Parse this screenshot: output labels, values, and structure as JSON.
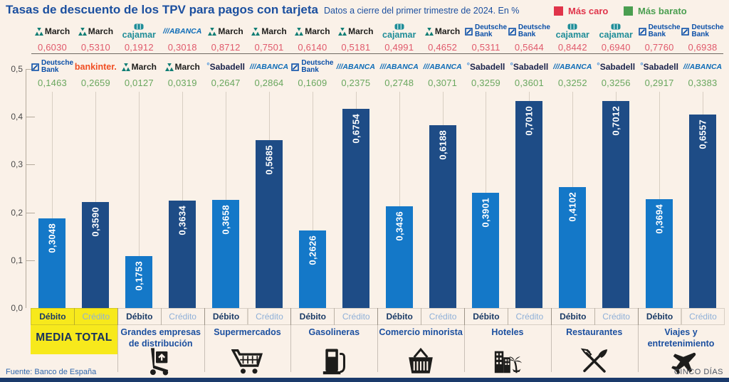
{
  "title": "Tasas de descuento de los TPV para pagos con tarjeta",
  "subtitle": "Datos a cierre del primer trimestre de 2024. En %",
  "legend": {
    "caro_label": "Más caro",
    "barato_label": "Más barato"
  },
  "colors": {
    "background": "#faf1e8",
    "title": "#1b4f9f",
    "debit_bar": "#1478c8",
    "credit_bar": "#1e4c86",
    "caro_value": "#e0596b",
    "barato_value": "#69a75e",
    "caro_legend": "#e0344a",
    "barato_legend": "#4a9e50",
    "highlight": "#f7e91c",
    "debit_label": "#1a3a66",
    "credit_label": "#8fb0d8",
    "bottom_strip": "#1a3a6b"
  },
  "banks": {
    "march": {
      "name": "March"
    },
    "cajamar": {
      "name": "cajamar"
    },
    "abanca": {
      "name": "ABANCA"
    },
    "deutsche": {
      "name": "Deutsche Bank"
    },
    "bankinter": {
      "name": "bankinter."
    },
    "sabadell": {
      "name": "Sabadell"
    }
  },
  "footer": {
    "source": "Fuente: Banco de España",
    "brand": "CINCO DÍAS"
  },
  "chart_data": {
    "type": "bar",
    "unit": "%",
    "ylim": [
      0,
      0.5
    ],
    "axis_ticks": [
      "0,5",
      "0,4",
      "0,3",
      "0,2",
      "0,1",
      "0,0"
    ],
    "grid": "vertical-guides-only",
    "legend_position": "top-right",
    "groups": [
      {
        "name": "MEDIA TOTAL",
        "highlight": true,
        "icon": null,
        "bars": [
          {
            "label": "Débito",
            "value": 0.3048,
            "display": "0,3048",
            "mas_caro": {
              "bank": "march",
              "value": "0,6030"
            },
            "mas_barato": {
              "bank": "deutsche",
              "value": "0,1463"
            }
          },
          {
            "label": "Crédito",
            "value": 0.359,
            "display": "0,3590",
            "mas_caro": {
              "bank": "march",
              "value": "0,5310"
            },
            "mas_barato": {
              "bank": "bankinter",
              "value": "0,2659"
            }
          }
        ]
      },
      {
        "name": "Grandes empresas de distribución",
        "highlight": false,
        "icon": "hand-truck",
        "bars": [
          {
            "label": "Débito",
            "value": 0.1753,
            "display": "0,1753",
            "mas_caro": {
              "bank": "cajamar",
              "value": "0,1912"
            },
            "mas_barato": {
              "bank": "march",
              "value": "0,0127"
            }
          },
          {
            "label": "Crédito",
            "value": 0.3634,
            "display": "0,3634",
            "mas_caro": {
              "bank": "abanca",
              "value": "0,3018"
            },
            "mas_barato": {
              "bank": "march",
              "value": "0,0319"
            }
          }
        ]
      },
      {
        "name": "Supermercados",
        "highlight": false,
        "icon": "cart",
        "bars": [
          {
            "label": "Débito",
            "value": 0.3658,
            "display": "0,3658",
            "mas_caro": {
              "bank": "march",
              "value": "0,8712"
            },
            "mas_barato": {
              "bank": "sabadell",
              "value": "0,2647"
            }
          },
          {
            "label": "Crédito",
            "value": 0.5685,
            "display": "0,5685",
            "mas_caro": {
              "bank": "march",
              "value": "0,7501"
            },
            "mas_barato": {
              "bank": "abanca",
              "value": "0,2864"
            }
          }
        ]
      },
      {
        "name": "Gasolineras",
        "highlight": false,
        "icon": "fuel-pump",
        "bars": [
          {
            "label": "Débito",
            "value": 0.2626,
            "display": "0,2626",
            "mas_caro": {
              "bank": "march",
              "value": "0,6140"
            },
            "mas_barato": {
              "bank": "deutsche",
              "value": "0,1609"
            }
          },
          {
            "label": "Crédito",
            "value": 0.6754,
            "display": "0,6754",
            "mas_caro": {
              "bank": "march",
              "value": "0,5181"
            },
            "mas_barato": {
              "bank": "abanca",
              "value": "0,2375"
            }
          }
        ]
      },
      {
        "name": "Comercio minorista",
        "highlight": false,
        "icon": "basket",
        "bars": [
          {
            "label": "Débito",
            "value": 0.3436,
            "display": "0,3436",
            "mas_caro": {
              "bank": "cajamar",
              "value": "0,4991"
            },
            "mas_barato": {
              "bank": "abanca",
              "value": "0,2748"
            }
          },
          {
            "label": "Crédito",
            "value": 0.6188,
            "display": "0,6188",
            "mas_caro": {
              "bank": "march",
              "value": "0,4652"
            },
            "mas_barato": {
              "bank": "abanca",
              "value": "0,3071"
            }
          }
        ]
      },
      {
        "name": "Hoteles",
        "highlight": false,
        "icon": "hotel",
        "bars": [
          {
            "label": "Débito",
            "value": 0.3901,
            "display": "0,3901",
            "mas_caro": {
              "bank": "deutsche",
              "value": "0,5311"
            },
            "mas_barato": {
              "bank": "sabadell",
              "value": "0,3259"
            }
          },
          {
            "label": "Crédito",
            "value": 0.701,
            "display": "0,7010",
            "mas_caro": {
              "bank": "deutsche",
              "value": "0,5644"
            },
            "mas_barato": {
              "bank": "sabadell",
              "value": "0,3601"
            }
          }
        ]
      },
      {
        "name": "Restaurantes",
        "highlight": false,
        "icon": "restaurant",
        "bars": [
          {
            "label": "Débito",
            "value": 0.4102,
            "display": "0,4102",
            "mas_caro": {
              "bank": "cajamar",
              "value": "0,8442"
            },
            "mas_barato": {
              "bank": "abanca",
              "value": "0,3252"
            }
          },
          {
            "label": "Crédito",
            "value": 0.7012,
            "display": "0,7012",
            "mas_caro": {
              "bank": "cajamar",
              "value": "0,6940"
            },
            "mas_barato": {
              "bank": "sabadell",
              "value": "0,3256"
            }
          }
        ]
      },
      {
        "name": "Viajes y entretenimiento",
        "highlight": false,
        "icon": "plane",
        "bars": [
          {
            "label": "Débito",
            "value": 0.3694,
            "display": "0,3694",
            "mas_caro": {
              "bank": "deutsche",
              "value": "0,7760"
            },
            "mas_barato": {
              "bank": "sabadell",
              "value": "0,2917"
            }
          },
          {
            "label": "Crédito",
            "value": 0.6557,
            "display": "0,6557",
            "mas_caro": {
              "bank": "deutsche",
              "value": "0,6938"
            },
            "mas_barato": {
              "bank": "abanca",
              "value": "0,3383"
            }
          }
        ]
      }
    ]
  }
}
